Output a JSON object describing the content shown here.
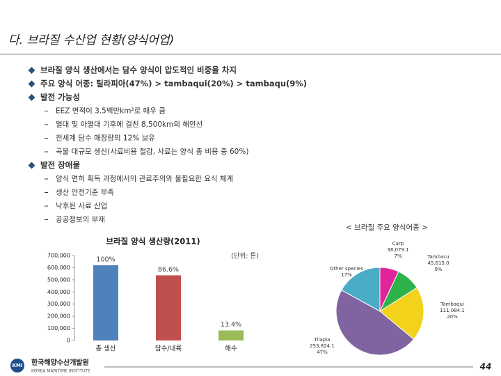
{
  "header": {
    "title": "다. 브라질 수산업 현황(양식어업)"
  },
  "bullets": [
    {
      "text": "브라질 양식 생산에서는 담수 양식이 압도적인 비중을 차지",
      "sub": []
    },
    {
      "text": "주요 양식 어종: 틸라피아(47%) > tambaqui(20%) > tambaqu(9%)",
      "sub": []
    },
    {
      "text": "발전 가능성",
      "sub": [
        "EEZ 면적이 3.5백만km²로 매우 큼",
        "열대 및 아열대 기후에 걸친 8,500km의 해안선",
        "전세계 담수 매장량의 12% 보유",
        "곡물 대규모 생산(사료비용 절감, 사료는 양식 총 비용 중 60%)"
      ]
    },
    {
      "text": "발전 장애물",
      "sub": [
        "양식 면허 획득 과정에서의 관료주의와 불필요한 요식 체계",
        "생산 안전기준 부족",
        "낙후된 사료 산업",
        "공공정보의 부재"
      ]
    }
  ],
  "chart_data": [
    {
      "type": "bar",
      "title": "브라질 양식 생산량(2011)",
      "unit": "(단위: 톤)",
      "categories": [
        "총 생산",
        "담수/내륙",
        "해수"
      ],
      "values": [
        620000,
        537000,
        83000
      ],
      "annotations": [
        "100%",
        "86.6%",
        "13.4%"
      ],
      "colors": [
        "#4f81bd",
        "#c0504d",
        "#9bbb59"
      ],
      "ylim": [
        0,
        700000
      ],
      "yticks": [
        0,
        {
          "value": 100000,
          "label": "100,000"
        },
        {
          "value": 200000,
          "label": "200,000"
        },
        {
          "value": 300000,
          "label": "300,000"
        },
        {
          "value": 400000,
          "label": "400,000"
        },
        {
          "value": 500000,
          "label": "500,000"
        },
        {
          "value": 600000,
          "label": "600,000"
        },
        {
          "value": 700000,
          "label": "700,000"
        }
      ],
      "grid": false
    },
    {
      "type": "pie",
      "title": "< 브라질 주요 양식어종 >",
      "categories": [
        "Carp",
        "Tambacu",
        "Tambaqui",
        "Tilapia",
        "Other species"
      ],
      "amount_labels": [
        "38,079.1",
        "45,615.0",
        "111,084.1",
        "253,824.1",
        null
      ],
      "values": [
        7,
        9,
        20,
        47,
        17
      ],
      "value_labels": [
        "7%",
        "9%",
        "20%",
        "47%",
        "17%"
      ],
      "colors": [
        "#e0259b",
        "#2db34a",
        "#f2d21b",
        "#8064a2",
        "#4bacc6"
      ]
    }
  ],
  "footer": {
    "logo": "KMI",
    "institute": "한국해양수산개발원",
    "institute_en": "KOREA MARITIME INSTITUTE",
    "page": 44
  }
}
